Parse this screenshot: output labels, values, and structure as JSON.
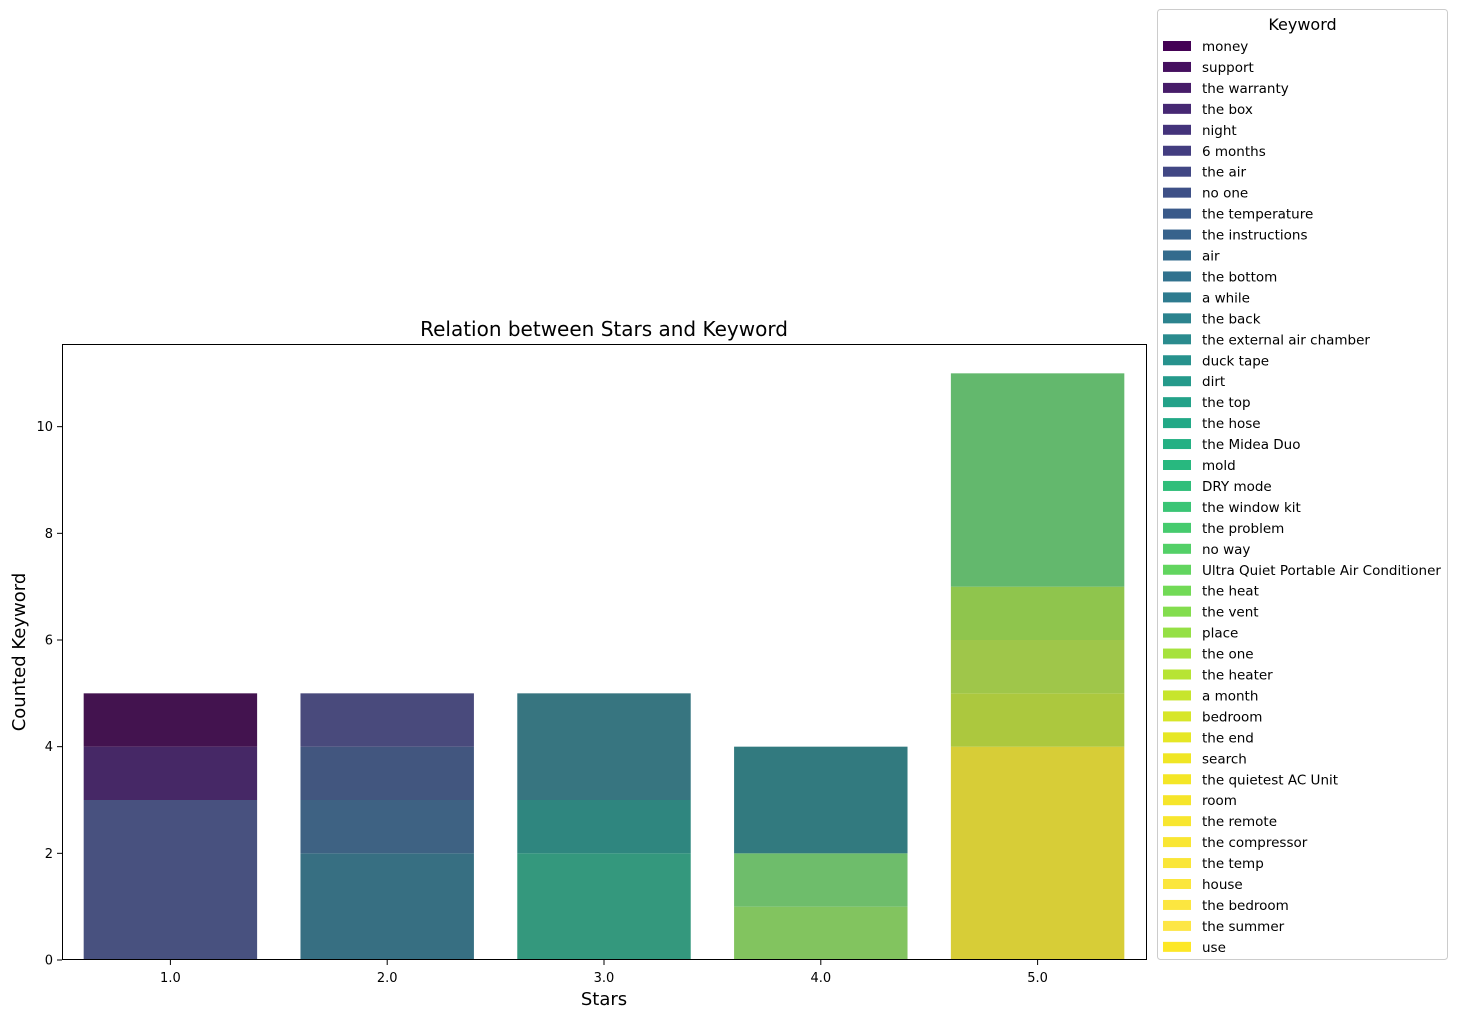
{
  "chart_data": {
    "type": "bar",
    "stacked": true,
    "title": "Relation between Stars and Keyword",
    "xlabel": "Stars",
    "ylabel": "Counted Keyword",
    "categories": [
      "1.0",
      "2.0",
      "3.0",
      "4.0",
      "5.0"
    ],
    "ylim": [
      0,
      11.55
    ],
    "yticks": [
      0,
      2,
      4,
      6,
      8,
      10
    ],
    "legend": {
      "title": "Keyword",
      "placement": "outside-right",
      "entries": [
        {
          "name": "money",
          "color": "#440154"
        },
        {
          "name": "support",
          "color": "#450f5f"
        },
        {
          "name": "the warranty",
          "color": "#471c69"
        },
        {
          "name": "the box",
          "color": "#462873"
        },
        {
          "name": "night",
          "color": "#44337b"
        },
        {
          "name": "6 months",
          "color": "#433d80"
        },
        {
          "name": "the air",
          "color": "#414784"
        },
        {
          "name": "no one",
          "color": "#3e5087"
        },
        {
          "name": "the temperature",
          "color": "#3a5a8a"
        },
        {
          "name": "the instructions",
          "color": "#37628c"
        },
        {
          "name": "air",
          "color": "#336b8d"
        },
        {
          "name": "the bottom",
          "color": "#31728e"
        },
        {
          "name": "a while",
          "color": "#2e7b8f"
        },
        {
          "name": "the back",
          "color": "#2b838e"
        },
        {
          "name": "the external air chamber",
          "color": "#2a8b8e"
        },
        {
          "name": "duck tape",
          "color": "#27928d"
        },
        {
          "name": "dirt",
          "color": "#259a8b"
        },
        {
          "name": "the top",
          "color": "#23a289"
        },
        {
          "name": "the hose",
          "color": "#22a987"
        },
        {
          "name": "the Midea Duo",
          "color": "#24b083"
        },
        {
          "name": "mold",
          "color": "#28b87f"
        },
        {
          "name": "DRY mode",
          "color": "#30be7a"
        },
        {
          "name": "the window kit",
          "color": "#3ac575"
        },
        {
          "name": "the problem",
          "color": "#46cb6e"
        },
        {
          "name": "no way",
          "color": "#53d067"
        },
        {
          "name": "Ultra Quiet Portable Air Conditioner",
          "color": "#62d55f"
        },
        {
          "name": "the heat",
          "color": "#72da56"
        },
        {
          "name": "the vent",
          "color": "#83dd4e"
        },
        {
          "name": "place",
          "color": "#95e045"
        },
        {
          "name": "the one",
          "color": "#a6e23d"
        },
        {
          "name": "the heater",
          "color": "#b7e434"
        },
        {
          "name": "a month",
          "color": "#c7e52d"
        },
        {
          "name": "bedroom",
          "color": "#d7e628"
        },
        {
          "name": "the end",
          "color": "#e6e725"
        },
        {
          "name": "search",
          "color": "#f0e624"
        },
        {
          "name": "the quietest AC Unit",
          "color": "#f4e626"
        },
        {
          "name": "room",
          "color": "#f6e52a"
        },
        {
          "name": "the remote",
          "color": "#f8e62f"
        },
        {
          "name": "the compressor",
          "color": "#f9e633"
        },
        {
          "name": "the temp",
          "color": "#fae638"
        },
        {
          "name": "house",
          "color": "#fbe63c"
        },
        {
          "name": "the bedroom",
          "color": "#fce640"
        },
        {
          "name": "the summer",
          "color": "#fde645"
        },
        {
          "name": "use",
          "color": "#fde725"
        }
      ]
    },
    "bars": [
      {
        "category": "1.0",
        "segments": [
          {
            "from": 0,
            "to": 3,
            "color": "#48517f"
          },
          {
            "from": 3,
            "to": 4,
            "color": "#462866"
          },
          {
            "from": 4,
            "to": 5,
            "color": "#43134f"
          }
        ]
      },
      {
        "category": "2.0",
        "segments": [
          {
            "from": 0,
            "to": 2,
            "color": "#376f82"
          },
          {
            "from": 2,
            "to": 3,
            "color": "#3e6283"
          },
          {
            "from": 3,
            "to": 4,
            "color": "#42567f"
          },
          {
            "from": 4,
            "to": 5,
            "color": "#494a7c"
          }
        ]
      },
      {
        "category": "3.0",
        "segments": [
          {
            "from": 0,
            "to": 2,
            "color": "#34987d"
          },
          {
            "from": 2,
            "to": 3,
            "color": "#2f867f"
          },
          {
            "from": 3,
            "to": 5,
            "color": "#377580"
          }
        ]
      },
      {
        "category": "4.0",
        "segments": [
          {
            "from": 0,
            "to": 1,
            "color": "#82c45f"
          },
          {
            "from": 1,
            "to": 2,
            "color": "#6ebd6b"
          },
          {
            "from": 2,
            "to": 4,
            "color": "#327a7f"
          }
        ]
      },
      {
        "category": "5.0",
        "segments": [
          {
            "from": 0,
            "to": 4,
            "color": "#d7cd37"
          },
          {
            "from": 4,
            "to": 5,
            "color": "#acc83e"
          },
          {
            "from": 5,
            "to": 6,
            "color": "#9fc64a"
          },
          {
            "from": 6,
            "to": 7,
            "color": "#8fc54d"
          },
          {
            "from": 7,
            "to": 11,
            "color": "#63b86d"
          }
        ]
      }
    ]
  }
}
